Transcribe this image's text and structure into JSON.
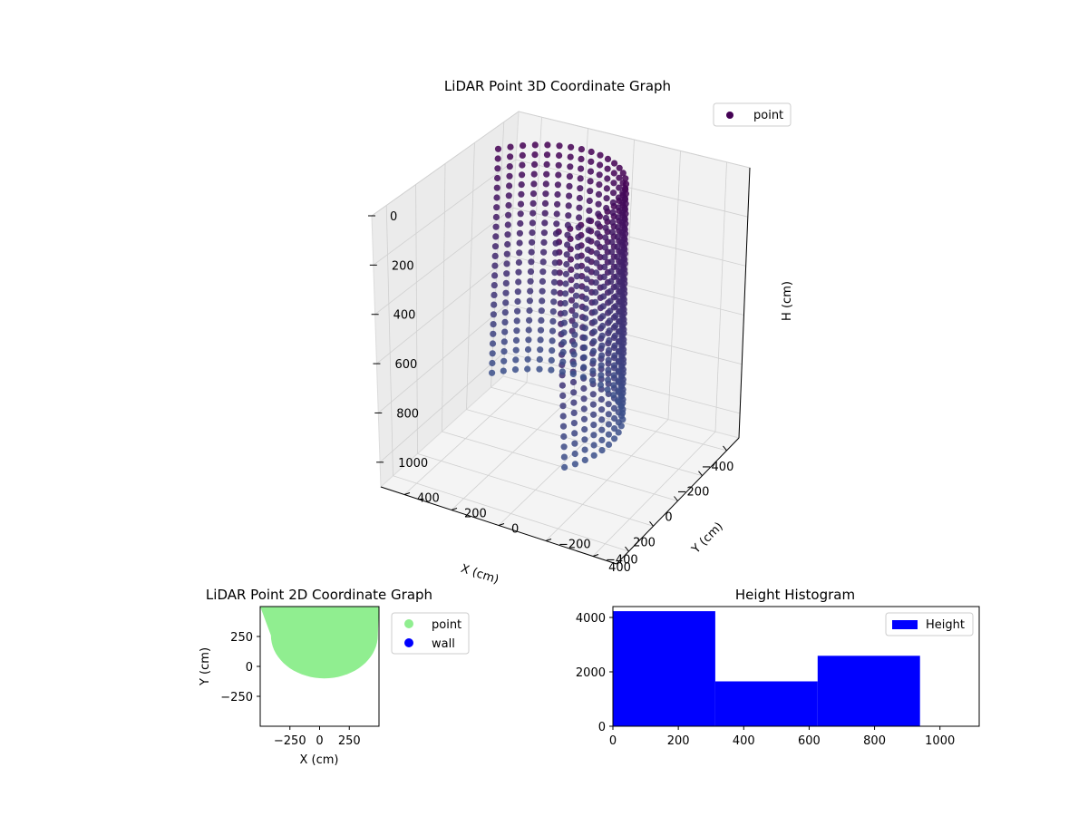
{
  "chart_data": [
    {
      "type": "scatter",
      "projection": "3d",
      "title": "LiDAR Point 3D Coordinate Graph",
      "xlabel": "X (cm)",
      "ylabel": "Y (cm)",
      "zlabel": "H (cm)",
      "xlim": [
        -500,
        500
      ],
      "ylim": [
        -500,
        500
      ],
      "zlim": [
        1100,
        0
      ],
      "xticks": [
        -400,
        -200,
        0,
        200,
        400
      ],
      "yticks": [
        -400,
        -200,
        0,
        200,
        400
      ],
      "zticks": [
        0,
        200,
        400,
        600,
        800,
        1000
      ],
      "legend": {
        "entries": [
          "point"
        ],
        "placement": "upper-right"
      },
      "colormap": "viridis",
      "grid": true,
      "series": [
        {
          "name": "point",
          "shape": "half-cylinder wall sampled in vertical columns",
          "radius": 400,
          "angle_range_deg": [
            -140,
            40
          ],
          "h_range": [
            0,
            950
          ],
          "color_low": "#440154",
          "color_high": "#3b528b"
        }
      ]
    },
    {
      "type": "scatter",
      "title": "LiDAR Point 2D Coordinate Graph",
      "xlabel": "X (cm)",
      "ylabel": "Y (cm)",
      "xlim": [
        -500,
        500
      ],
      "ylim": [
        -500,
        500
      ],
      "xticks": [
        -250,
        0,
        250
      ],
      "yticks": [
        -250,
        0,
        250
      ],
      "legend": {
        "entries": [
          "point",
          "wall"
        ],
        "placement": "outside-right"
      },
      "series": [
        {
          "name": "point",
          "color": "#90ee90",
          "region": "filled half-disc",
          "radius": 450,
          "x_range": [
            -500,
            500
          ],
          "y_range": [
            -100,
            500
          ]
        },
        {
          "name": "wall",
          "color": "#0000ff"
        }
      ]
    },
    {
      "type": "bar",
      "subtype": "histogram",
      "title": "Height Histogram",
      "xlim": [
        0,
        1120
      ],
      "ylim": [
        0,
        4400
      ],
      "xticks": [
        0,
        200,
        400,
        600,
        800,
        1000
      ],
      "yticks": [
        0,
        2000,
        4000
      ],
      "bins": [
        {
          "from": 0,
          "to": 313,
          "count": 4230
        },
        {
          "from": 313,
          "to": 626,
          "count": 1650
        },
        {
          "from": 626,
          "to": 939,
          "count": 2590
        }
      ],
      "legend": {
        "entries": [
          "Height"
        ],
        "placement": "upper-right"
      },
      "series": [
        {
          "name": "Height",
          "color": "#0000ff"
        }
      ]
    }
  ]
}
